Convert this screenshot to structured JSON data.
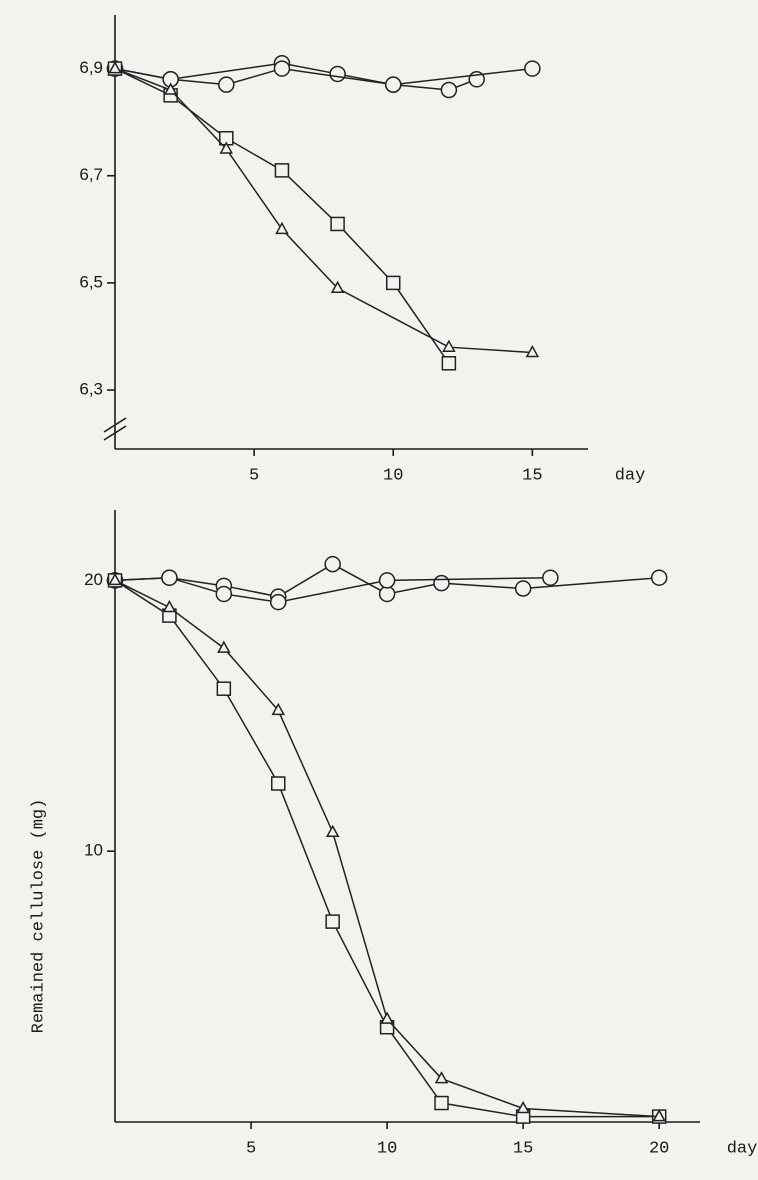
{
  "chart_data": [
    {
      "type": "line",
      "xlabel": "day",
      "xlim": [
        0,
        17
      ],
      "xticks": [
        5,
        10,
        15
      ],
      "ylim": [
        6.19,
        7.0
      ],
      "yticks": [
        {
          "value": 6.3,
          "label": "6,3"
        },
        {
          "value": 6.5,
          "label": "6,5"
        },
        {
          "value": 6.7,
          "label": "6,7"
        },
        {
          "value": 6.9,
          "label": "6,9"
        }
      ],
      "series": [
        {
          "marker": "circle",
          "color": "#222222",
          "x": [
            0,
            2,
            6,
            8,
            10,
            12,
            13
          ],
          "values": [
            6.9,
            6.88,
            6.91,
            6.89,
            6.87,
            6.86,
            6.88
          ]
        },
        {
          "marker": "circle",
          "color": "#222222",
          "x": [
            0,
            2,
            4,
            6,
            10,
            15
          ],
          "values": [
            6.9,
            6.88,
            6.87,
            6.9,
            6.87,
            6.9
          ]
        },
        {
          "marker": "square",
          "color": "#222222",
          "x": [
            0,
            2,
            4,
            6,
            8,
            10,
            12
          ],
          "values": [
            6.9,
            6.85,
            6.77,
            6.71,
            6.61,
            6.5,
            6.35
          ]
        },
        {
          "marker": "triangle",
          "color": "#222222",
          "x": [
            0,
            2,
            4,
            6,
            8,
            12,
            15
          ],
          "values": [
            6.9,
            6.86,
            6.75,
            6.6,
            6.49,
            6.38,
            6.37
          ]
        }
      ]
    },
    {
      "type": "line",
      "xlabel": "day",
      "ylabel": "Remained cellulose (mg)",
      "xlim": [
        0,
        21.5
      ],
      "xticks": [
        5,
        10,
        15,
        20
      ],
      "ylim": [
        0,
        22.6
      ],
      "yticks": [
        10,
        20
      ],
      "series": [
        {
          "marker": "circle",
          "color": "#222222",
          "x": [
            0,
            2,
            4,
            6,
            8,
            10,
            12,
            15,
            20
          ],
          "values": [
            20,
            20.1,
            19.8,
            19.4,
            20.6,
            19.5,
            19.9,
            19.7,
            20.1
          ]
        },
        {
          "marker": "circle",
          "color": "#222222",
          "x": [
            0,
            2,
            4,
            6,
            10,
            16
          ],
          "values": [
            20,
            20.1,
            19.5,
            19.2,
            20,
            20.1
          ]
        },
        {
          "marker": "square",
          "color": "#222222",
          "x": [
            0,
            2,
            4,
            6,
            8,
            10,
            12,
            15,
            20
          ],
          "values": [
            20,
            18.7,
            16,
            12.5,
            7.4,
            3.5,
            0.7,
            0.2,
            0.2
          ]
        },
        {
          "marker": "triangle",
          "color": "#222222",
          "x": [
            0,
            2,
            4,
            6,
            8,
            10,
            12,
            15,
            20
          ],
          "values": [
            20,
            19,
            17.5,
            15.2,
            10.7,
            3.8,
            1.6,
            0.5,
            0.2
          ]
        }
      ]
    }
  ]
}
